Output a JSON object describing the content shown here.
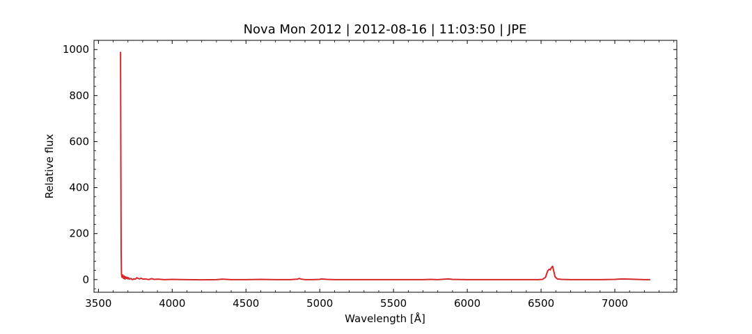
{
  "chart_data": {
    "type": "line",
    "title": "Nova Mon 2012 | 2012-08-16 | 11:03:50 | JPE",
    "xlabel": "Wavelength [Å]",
    "ylabel": "Relative flux",
    "xlim": [
      3470,
      7420
    ],
    "ylim": [
      -55,
      1040
    ],
    "xticks": [
      3500,
      4000,
      4500,
      5000,
      5500,
      6000,
      6500,
      7000
    ],
    "yticks": [
      0,
      200,
      400,
      600,
      800,
      1000
    ],
    "grid": false,
    "line_color": "#d62728",
    "series": [
      {
        "x": [
          3650,
          3652,
          3654,
          3656,
          3658,
          3660,
          3665,
          3670,
          3675,
          3680,
          3685,
          3690,
          3695,
          3700,
          3705,
          3710,
          3720,
          3730,
          3740,
          3750,
          3760,
          3770,
          3780,
          3790,
          3800,
          3820,
          3840,
          3860,
          3880,
          3900,
          3950,
          4000,
          4100,
          4200,
          4300,
          4340,
          4400,
          4500,
          4600,
          4700,
          4800,
          4850,
          4861,
          4875,
          4900,
          4950,
          5000,
          5010,
          5050,
          5100,
          5200,
          5300,
          5400,
          5500,
          5600,
          5700,
          5750,
          5800,
          5850,
          5875,
          5900,
          6000,
          6100,
          6200,
          6300,
          6400,
          6480,
          6510,
          6530,
          6545,
          6555,
          6563,
          6570,
          6578,
          6585,
          6595,
          6610,
          6640,
          6700,
          6800,
          6900,
          7000,
          7050,
          7100,
          7150,
          7200,
          7240
        ],
        "y": [
          990,
          500,
          120,
          25,
          15,
          10,
          20,
          5,
          15,
          2,
          12,
          5,
          10,
          3,
          8,
          2,
          5,
          0,
          3,
          2,
          8,
          5,
          3,
          6,
          2,
          3,
          0,
          4,
          1,
          2,
          0,
          1,
          0,
          -1,
          0,
          2,
          0,
          0,
          1,
          0,
          0,
          2,
          5,
          2,
          0,
          0,
          1,
          3,
          1,
          0,
          0,
          0,
          0,
          0,
          0,
          0,
          1,
          0,
          2,
          3,
          1,
          0,
          0,
          0,
          0,
          0,
          0,
          1,
          10,
          38,
          45,
          42,
          52,
          58,
          40,
          12,
          3,
          1,
          0,
          0,
          0,
          1,
          3,
          2,
          1,
          0,
          0
        ]
      }
    ]
  }
}
